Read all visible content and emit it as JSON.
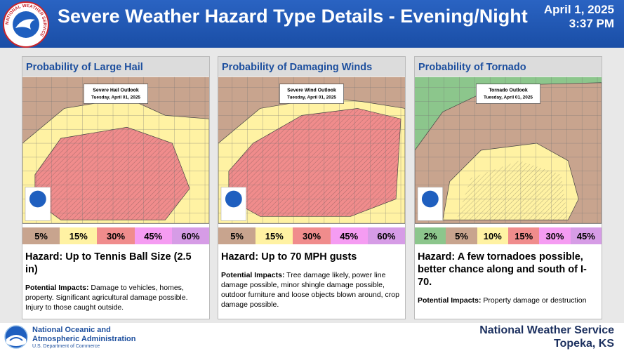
{
  "header": {
    "logo_text": "NATIONAL WEATHER SERVICE",
    "title": "Severe Weather Hazard Type Details - Evening/Night",
    "date": "April 1, 2025",
    "time": "3:37 PM"
  },
  "panels": [
    {
      "title": "Probability of Large Hail",
      "map": {
        "outlook_title": "Severe Hail Outlook",
        "date": "Tuesday, April 01, 2025"
      },
      "legend": [
        {
          "label": "5%",
          "color": "#c8a48e"
        },
        {
          "label": "15%",
          "color": "#fff2a3"
        },
        {
          "label": "30%",
          "color": "#f08c8c"
        },
        {
          "label": "45%",
          "color": "#f59cf2"
        },
        {
          "label": "60%",
          "color": "#d69ce6"
        }
      ],
      "hazard_label": "Hazard:",
      "hazard": "Up to Tennis Ball Size (2.5 in)",
      "impacts_label": "Potential Impacts:",
      "impacts": "Damage to vehicles, homes, property. Significant agricultural damage possible. Injury to those caught outside."
    },
    {
      "title": "Probability of Damaging Winds",
      "map": {
        "outlook_title": "Severe Wind Outlook",
        "date": "Tuesday, April 01, 2025"
      },
      "legend": [
        {
          "label": "5%",
          "color": "#c8a48e"
        },
        {
          "label": "15%",
          "color": "#fff2a3"
        },
        {
          "label": "30%",
          "color": "#f08c8c"
        },
        {
          "label": "45%",
          "color": "#f59cf2"
        },
        {
          "label": "60%",
          "color": "#d69ce6"
        }
      ],
      "hazard_label": "Hazard:",
      "hazard": "Up to 70 MPH gusts",
      "impacts_label": "Potential Impacts:",
      "impacts": "Tree damage likely, power line damage possible, minor shingle damage possible, outdoor furniture and loose objects blown around, crop damage possible."
    },
    {
      "title": "Probability of Tornado",
      "map": {
        "outlook_title": "Tornado Outlook",
        "date": "Tuesday, April 01, 2025"
      },
      "legend": [
        {
          "label": "2%",
          "color": "#8cc68c"
        },
        {
          "label": "5%",
          "color": "#c8a48e"
        },
        {
          "label": "10%",
          "color": "#fff2a3"
        },
        {
          "label": "15%",
          "color": "#f08c8c"
        },
        {
          "label": "30%",
          "color": "#f59cf2"
        },
        {
          "label": "45%",
          "color": "#d69ce6"
        }
      ],
      "hazard_label": "Hazard:",
      "hazard": "A few tornadoes possible, better chance along and south of I-70.",
      "impacts_label": "Potential Impacts:",
      "impacts": "Property damage or destruction"
    }
  ],
  "footer": {
    "agency_line1": "National Oceanic and",
    "agency_line2": "Atmospheric Administration",
    "department": "U.S. Department of Commerce",
    "office": "National Weather Service",
    "location": "Topeka, KS"
  }
}
